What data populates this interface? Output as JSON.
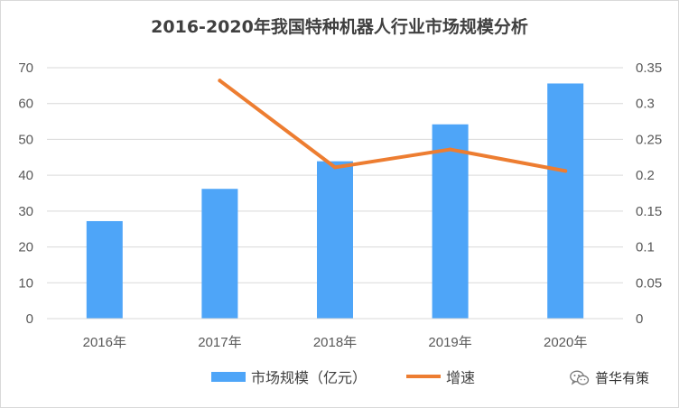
{
  "chart_data": {
    "type": "bar",
    "title": "2016-2020年我国特种机器人行业市场规模分析",
    "categories": [
      "2016年",
      "2017年",
      "2018年",
      "2019年",
      "2020年"
    ],
    "series": [
      {
        "name": "市场规模（亿元）",
        "type": "bar",
        "axis": "left",
        "color": "#4ea5f8",
        "values": [
          27.2,
          36.2,
          43.9,
          54.2,
          65.6
        ]
      },
      {
        "name": "增速",
        "type": "line",
        "axis": "right",
        "color": "#ed7d31",
        "values": [
          null,
          0.332,
          0.211,
          0.236,
          0.206
        ]
      }
    ],
    "y_left": {
      "ylim": [
        0,
        70
      ],
      "ticks": [
        "0",
        "10",
        "20",
        "30",
        "40",
        "50",
        "60",
        "70"
      ]
    },
    "y_right": {
      "ylim": [
        0,
        0.35
      ],
      "ticks": [
        "0",
        "0.05",
        "0.1",
        "0.15",
        "0.2",
        "0.25",
        "0.3",
        "0.35"
      ]
    },
    "grid": true,
    "legend": "bottom"
  },
  "watermark": {
    "text": "普华有策",
    "icon": "wechat-icon"
  }
}
